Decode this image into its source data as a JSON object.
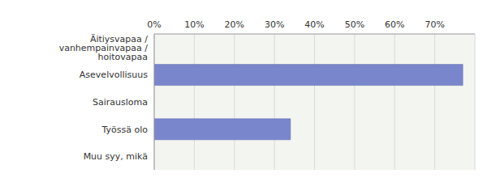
{
  "chart_data": {
    "type": "bar",
    "orientation": "horizontal",
    "categories": [
      "Äitiysvapaa / vanhempainvapaa / hoitovapaa",
      "Asevelvollisuus",
      "Sairausloma",
      "Työssä olo",
      "Muu syy, mikä"
    ],
    "values": [
      0,
      77,
      0,
      34,
      0
    ],
    "color": "#7a86cc",
    "xlim": [
      0,
      80
    ],
    "xticks": [
      {
        "value": 0,
        "label": "0%"
      },
      {
        "value": 10,
        "label": "10%"
      },
      {
        "value": 20,
        "label": "20%"
      },
      {
        "value": 30,
        "label": "30%"
      },
      {
        "value": 40,
        "label": "40%"
      },
      {
        "value": 50,
        "label": "50%"
      },
      {
        "value": 60,
        "label": "60%"
      },
      {
        "value": 70,
        "label": "70%"
      }
    ],
    "grid": true
  }
}
